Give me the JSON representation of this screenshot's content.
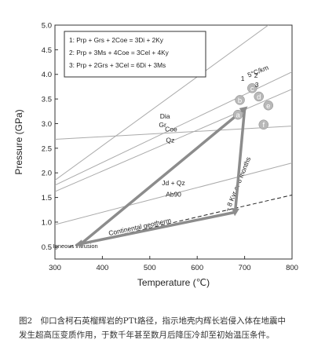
{
  "chart_data": {
    "type": "scatter",
    "xlabel": "Temperature (℃)",
    "ylabel": "Pressure (GPa)",
    "xlim": [
      300,
      800
    ],
    "ylim": [
      0.25,
      5.0
    ],
    "xticks": [
      300,
      400,
      500,
      600,
      700,
      800
    ],
    "yticks": [
      0.5,
      1.0,
      1.5,
      2.0,
      2.5,
      3.0,
      3.5,
      4.0,
      4.5,
      5.0
    ],
    "grid": false,
    "legend": {
      "placement": "top-left",
      "entries": [
        "1: Prp + Grs + 2Coe = 3Di + 2Ky",
        "2: Prp + 3Ms + 4Coe = 3Cel + 4Ky",
        "3: Prp + 2Grs + 3Cel = 6Di + 3Ms"
      ]
    },
    "reaction_lines": [
      {
        "name": "5°C/km",
        "points": [
          [
            300,
            1.85
          ],
          [
            750,
            5.0
          ]
        ]
      },
      {
        "name": "reaction-1",
        "points": [
          [
            300,
            1.75
          ],
          [
            800,
            4.05
          ]
        ]
      },
      {
        "name": "Dia / Gr",
        "points": [
          [
            300,
            1.62
          ],
          [
            800,
            3.7
          ]
        ]
      },
      {
        "name": "Coe / Qz",
        "points": [
          [
            300,
            2.68
          ],
          [
            800,
            2.95
          ]
        ]
      },
      {
        "name": "Jd + Qz / Ab90",
        "points": [
          [
            300,
            0.95
          ],
          [
            800,
            2.2
          ]
        ]
      },
      {
        "name": "Continental geotherm",
        "dashed": true,
        "points": [
          [
            330,
            0.5
          ],
          [
            800,
            1.55
          ]
        ]
      }
    ],
    "phase_labels": [
      {
        "text": "Dia",
        "x": 532,
        "y": 3.1
      },
      {
        "text": "Gr",
        "x": 527,
        "y": 2.93
      },
      {
        "text": "Coe",
        "x": 545,
        "y": 2.84
      },
      {
        "text": "Qz",
        "x": 543,
        "y": 2.62
      },
      {
        "text": "Jd + Qz",
        "x": 550,
        "y": 1.75
      },
      {
        "text": "Ab90",
        "x": 550,
        "y": 1.52
      },
      {
        "text": "5°C/km",
        "x": 730,
        "y": 4.02
      },
      {
        "text": "Continental geotherm",
        "x": 480,
        "y": 0.86
      },
      {
        "text": "~ 8 Kyr or 8 months",
        "x": 690,
        "y": 1.75
      },
      {
        "text": "Igneous intrusion",
        "x": 296,
        "y": 0.47
      }
    ],
    "points": [
      {
        "label": "a",
        "x": 686,
        "y": 3.18
      },
      {
        "label": "b",
        "x": 690,
        "y": 3.48
      },
      {
        "label": "c",
        "x": 716,
        "y": 3.72
      },
      {
        "label": "d",
        "x": 730,
        "y": 3.55
      },
      {
        "label": "e",
        "x": 750,
        "y": 3.37
      },
      {
        "label": "f",
        "x": 740,
        "y": 2.98
      }
    ],
    "intersection_labels": [
      "1",
      "2",
      "3"
    ],
    "ptt_path": [
      [
        360,
        0.6
      ],
      [
        700,
        3.3
      ],
      [
        680,
        1.2
      ],
      [
        350,
        0.55
      ]
    ]
  },
  "caption": {
    "line1": "图2　仰口含柯石英榴辉岩的PTt路径，指示地壳内辉长岩侵入体在地震中",
    "line2": "发生超高压变质作用，于数千年甚至数月后降压冷却至初始温压条件。"
  },
  "colors": {
    "axis": "#333333",
    "path": "#8c8c8c",
    "reaction": "#aaaaaa",
    "point_fill": "#b8b8b8"
  }
}
